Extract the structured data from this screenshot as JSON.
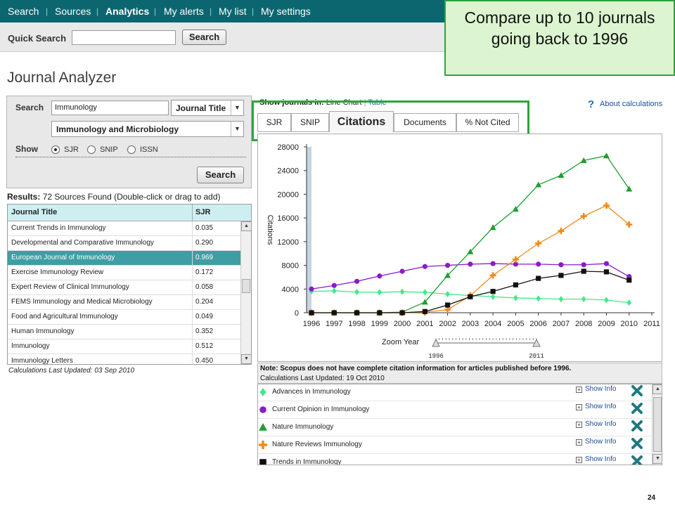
{
  "nav": {
    "items": [
      "Search",
      "Sources",
      "Analytics",
      "My alerts",
      "My list",
      "My settings"
    ],
    "active_index": 2
  },
  "quick_search": {
    "label": "Quick Search",
    "value": "",
    "button": "Search"
  },
  "page_title": "Journal Analyzer",
  "callout": "Compare up to 10 journals going back to 1996",
  "search_panel": {
    "search_label": "Search",
    "query": "Immunology",
    "field_select": "Journal Title",
    "subject_select": "Immunology and Microbiology",
    "show_label": "Show",
    "options": [
      "SJR",
      "SNIP",
      "ISSN"
    ],
    "selected_option": "SJR",
    "button": "Search"
  },
  "results": {
    "label": "Results:",
    "summary": "72 Sources Found (Double-click or drag to add)",
    "columns": [
      "Journal Title",
      "SJR"
    ],
    "rows": [
      {
        "title": "Current Trends in Immunology",
        "sjr": "0.035"
      },
      {
        "title": "Developmental and Comparative Immunology",
        "sjr": "0.290"
      },
      {
        "title": "European Journal of Immunology",
        "sjr": "0.969"
      },
      {
        "title": "Exercise Immunology Review",
        "sjr": "0.172"
      },
      {
        "title": "Expert Review of Clinical Immunology",
        "sjr": "0.058"
      },
      {
        "title": "FEMS Immunology and Medical Microbiology",
        "sjr": "0.204"
      },
      {
        "title": "Food and Agricultural Immunology",
        "sjr": "0.049"
      },
      {
        "title": "Human Immunology",
        "sjr": "0.352"
      },
      {
        "title": "Immunology",
        "sjr": "0.512"
      },
      {
        "title": "Immunology Letters",
        "sjr": "0.450"
      }
    ],
    "selected_index": 2,
    "updated": "Calculations Last Updated: 03 Sep 2010"
  },
  "chart_controls": {
    "show_label": "Show journals in:",
    "line_chart": "Line Chart",
    "table": "Table",
    "about": "About calculations",
    "tabs": [
      "SJR",
      "SNIP",
      "Citations",
      "Documents",
      "% Not Cited"
    ],
    "active_tab": "Citations"
  },
  "chart_data": {
    "type": "line",
    "ylabel": "Citations",
    "xlabel": "",
    "x": [
      1996,
      1997,
      1998,
      1999,
      2000,
      2001,
      2002,
      2003,
      2004,
      2005,
      2006,
      2007,
      2008,
      2009,
      2010
    ],
    "x_ticks": [
      1996,
      1997,
      1998,
      1999,
      2000,
      2001,
      2002,
      2003,
      2004,
      2005,
      2006,
      2007,
      2008,
      2009,
      2010,
      2011
    ],
    "y_ticks": [
      0,
      4000,
      8000,
      12000,
      16000,
      20000,
      24000,
      28000
    ],
    "xlim": [
      1996,
      2011
    ],
    "ylim": [
      0,
      28000
    ],
    "grid": false,
    "series": [
      {
        "name": "Advances in Immunology",
        "color": "#44e88a",
        "marker": "diamond",
        "values": [
          3600,
          3700,
          3500,
          3450,
          3550,
          3450,
          3150,
          2900,
          2700,
          2500,
          2400,
          2300,
          2300,
          2150,
          1700
        ]
      },
      {
        "name": "Current Opinion in Immunology",
        "color": "#8a1cc7",
        "marker": "circle",
        "values": [
          4000,
          4600,
          5300,
          6200,
          7000,
          7800,
          8000,
          8200,
          8300,
          8200,
          8200,
          8100,
          8100,
          8300,
          6100
        ]
      },
      {
        "name": "Nature Immunology",
        "color": "#1f9e2e",
        "marker": "triangle",
        "values": [
          0,
          0,
          0,
          0,
          100,
          1800,
          6300,
          10300,
          14400,
          17500,
          21600,
          23200,
          25700,
          26500,
          20900
        ]
      },
      {
        "name": "Nature Reviews Immunology",
        "color": "#f08a1c",
        "marker": "plus",
        "values": [
          0,
          0,
          0,
          0,
          0,
          100,
          500,
          2900,
          6300,
          9000,
          11700,
          13800,
          16300,
          18100,
          14900
        ]
      },
      {
        "name": "Trends in Immunology",
        "color": "#111111",
        "marker": "square",
        "values": [
          0,
          0,
          0,
          0,
          0,
          200,
          1300,
          2700,
          3600,
          4700,
          5800,
          6300,
          7000,
          6900,
          5500
        ]
      }
    ]
  },
  "zoom": {
    "label": "Zoom Year",
    "start": "1996",
    "end": "2011"
  },
  "notes": {
    "text": "Note: Scopus does not have complete citation information for articles published before 1996.",
    "updated": "Calculations Last Updated: 19 Oct 2010",
    "show_info": "Show Info"
  },
  "page_number": "24"
}
